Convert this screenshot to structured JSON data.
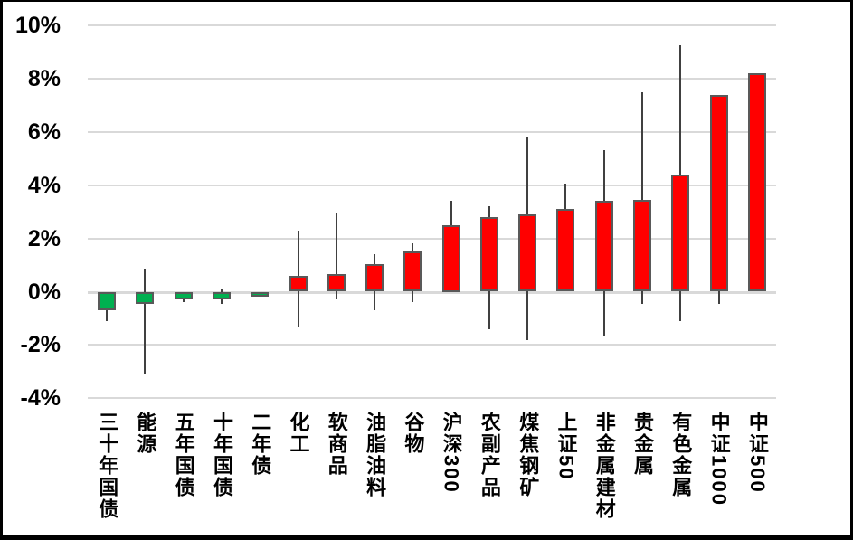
{
  "chart_data": {
    "type": "bar",
    "subtype": "floating-candlestick",
    "title": "",
    "xlabel": "",
    "ylabel": "",
    "legend": "none",
    "grid": "horizontal",
    "ylim": [
      -4,
      10
    ],
    "ytick_labels": [
      "10%",
      "8%",
      "6%",
      "4%",
      "2%",
      "0%",
      "-2%",
      "-4%"
    ],
    "ytick_values": [
      10,
      8,
      6,
      4,
      2,
      0,
      -2,
      -4
    ],
    "value_unit": "%",
    "categories": [
      "三十年国债",
      "能源",
      "五年国债",
      "十年国债",
      "二年债",
      "化工",
      "软商品",
      "油脂油料",
      "谷物",
      "沪深300",
      "农副产品",
      "煤焦钢矿",
      "上证50",
      "非金属建材",
      "贵金属",
      "有色金属",
      "中证1000",
      "中证500"
    ],
    "items": [
      {
        "label": "三十年国债",
        "value": -0.7,
        "high": 0.0,
        "low": -1.1
      },
      {
        "label": "能源",
        "value": -0.45,
        "high": 0.85,
        "low": -3.1
      },
      {
        "label": "五年国债",
        "value": -0.3,
        "high": 0.0,
        "low": -0.4
      },
      {
        "label": "十年国债",
        "value": -0.3,
        "high": 0.1,
        "low": -0.45
      },
      {
        "label": "二年债",
        "value": -0.1,
        "high": 0.0,
        "low": -0.15
      },
      {
        "label": "化工",
        "value": 0.6,
        "high": 2.3,
        "low": -1.35
      },
      {
        "label": "软商品",
        "value": 0.65,
        "high": 2.95,
        "low": -0.3
      },
      {
        "label": "油脂油料",
        "value": 1.05,
        "high": 1.4,
        "low": -0.7
      },
      {
        "label": "谷物",
        "value": 1.5,
        "high": 1.8,
        "low": -0.4
      },
      {
        "label": "沪深300",
        "value": 2.5,
        "high": 3.4,
        "low": 0.0
      },
      {
        "label": "农副产品",
        "value": 2.8,
        "high": 3.2,
        "low": -1.4
      },
      {
        "label": "煤焦钢矿",
        "value": 2.9,
        "high": 5.8,
        "low": -1.8
      },
      {
        "label": "上证50",
        "value": 3.1,
        "high": 4.05,
        "low": 0.0
      },
      {
        "label": "非金属建材",
        "value": 3.4,
        "high": 5.3,
        "low": -1.65
      },
      {
        "label": "贵金属",
        "value": 3.45,
        "high": 7.5,
        "low": -0.45
      },
      {
        "label": "有色金属",
        "value": 4.4,
        "high": 9.25,
        "low": -1.1
      },
      {
        "label": "中证1000",
        "value": 7.4,
        "high": 7.4,
        "low": -0.45
      },
      {
        "label": "中证500",
        "value": 8.2,
        "high": 8.2,
        "low": 0.0
      }
    ],
    "colors": {
      "positive_fill": "#ff0000",
      "negative_fill": "#00b050",
      "bar_border": "#595959",
      "whisker": "#404040",
      "gridline": "#d9d9d9",
      "frame_border": "#000000",
      "background": "#ffffff",
      "text": "#000000"
    }
  }
}
